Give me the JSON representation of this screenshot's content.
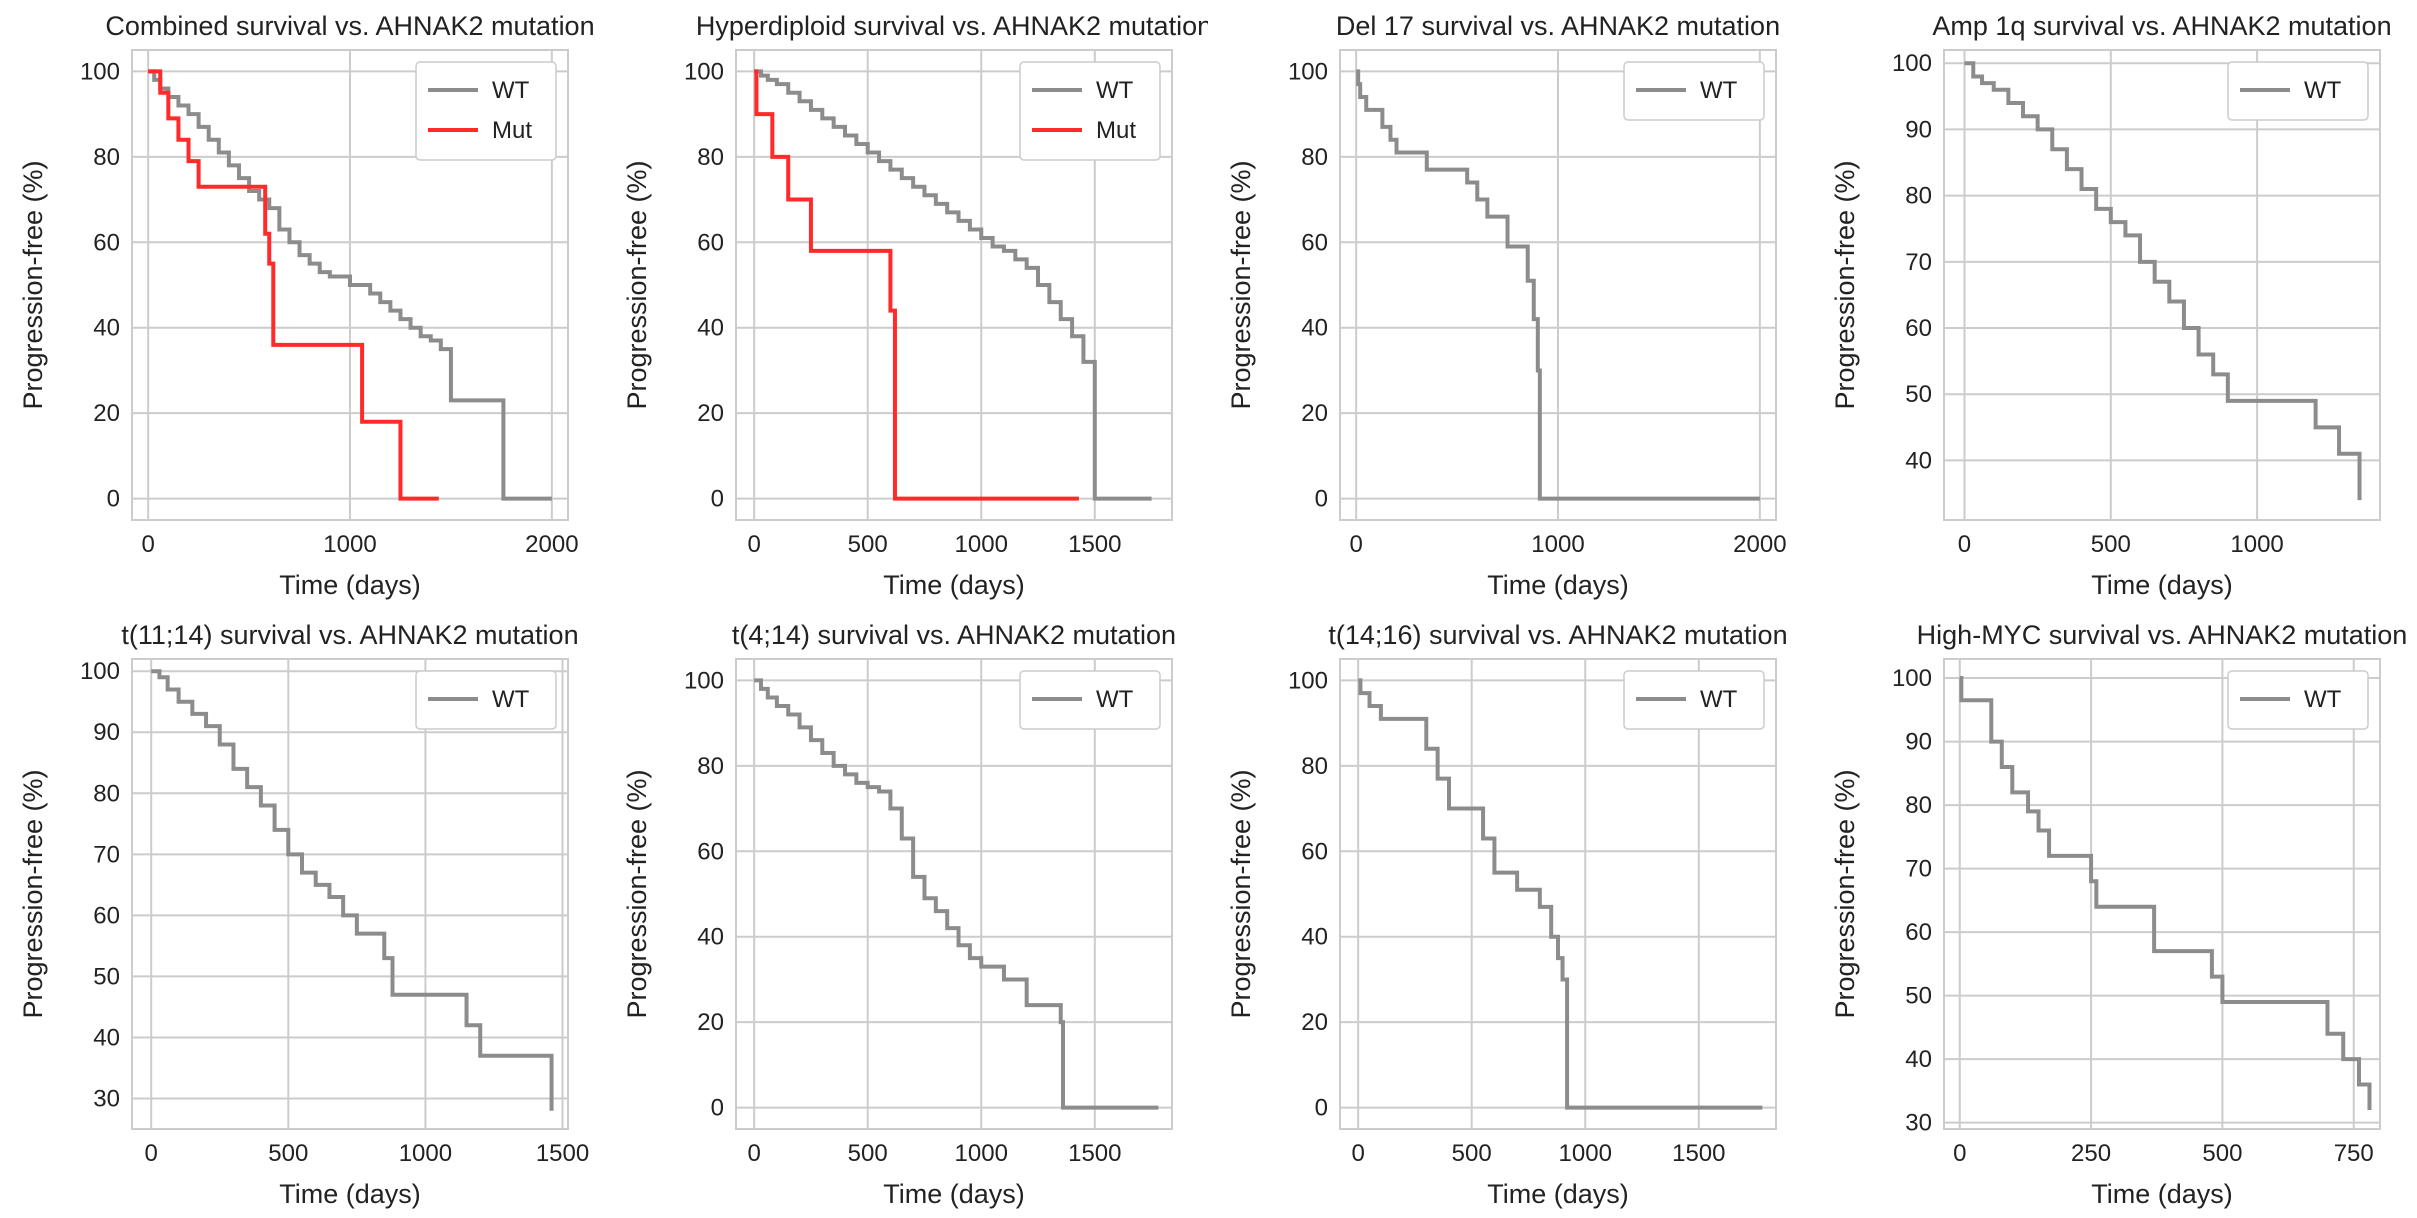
{
  "colors": {
    "WT": "#8c8c8c",
    "Mut": "#ff2a2a",
    "grid": "#cccccc"
  },
  "chart_data": [
    {
      "type": "line",
      "title": "Combined survival vs. AHNAK2 mutation",
      "xlabel": "Time (days)",
      "ylabel": "Progression-free (%)",
      "xlim": [
        -80,
        2080
      ],
      "ylim": [
        -5,
        105
      ],
      "xticks": [
        0,
        1000,
        2000
      ],
      "yticks": [
        0,
        20,
        40,
        60,
        80,
        100
      ],
      "legend": "top-right",
      "grid": true,
      "series": [
        {
          "name": "WT",
          "x": [
            0,
            30,
            60,
            100,
            150,
            200,
            250,
            300,
            350,
            400,
            450,
            500,
            550,
            600,
            650,
            700,
            750,
            800,
            850,
            900,
            1000,
            1100,
            1150,
            1200,
            1250,
            1300,
            1350,
            1400,
            1450,
            1500,
            1750,
            1760,
            2000
          ],
          "y": [
            100,
            98,
            96,
            94,
            92,
            90,
            87,
            84,
            81,
            78,
            75,
            72,
            70,
            68,
            63,
            60,
            57,
            55,
            53,
            52,
            50,
            48,
            46,
            44,
            42,
            40,
            38,
            37,
            35,
            23,
            23,
            0,
            0
          ]
        },
        {
          "name": "Mut",
          "x": [
            0,
            60,
            100,
            150,
            200,
            250,
            560,
            580,
            600,
            620,
            1050,
            1060,
            1240,
            1250,
            1440
          ],
          "y": [
            100,
            95,
            89,
            84,
            79,
            73,
            73,
            62,
            55,
            36,
            36,
            18,
            18,
            0,
            0
          ]
        }
      ]
    },
    {
      "type": "line",
      "title": "Hyperdiploid survival vs. AHNAK2 mutation",
      "xlabel": "Time (days)",
      "ylabel": "Progression-free (%)",
      "xlim": [
        -80,
        1840
      ],
      "ylim": [
        -5,
        105
      ],
      "xticks": [
        0,
        500,
        1000,
        1500
      ],
      "yticks": [
        0,
        20,
        40,
        60,
        80,
        100
      ],
      "legend": "top-right",
      "grid": true,
      "series": [
        {
          "name": "WT",
          "x": [
            0,
            30,
            60,
            100,
            150,
            200,
            250,
            300,
            350,
            400,
            450,
            500,
            550,
            600,
            650,
            700,
            750,
            800,
            850,
            900,
            950,
            1000,
            1050,
            1100,
            1150,
            1200,
            1250,
            1300,
            1350,
            1400,
            1450,
            1490,
            1500,
            1750
          ],
          "y": [
            100,
            99,
            98,
            97,
            95,
            93,
            91,
            89,
            87,
            85,
            83,
            81,
            79,
            77,
            75,
            73,
            71,
            69,
            67,
            65,
            63,
            61,
            59,
            58,
            56,
            54,
            50,
            46,
            42,
            38,
            32,
            32,
            0,
            0
          ]
        },
        {
          "name": "Mut",
          "x": [
            0,
            10,
            80,
            150,
            250,
            580,
            600,
            620,
            1430
          ],
          "y": [
            100,
            90,
            80,
            70,
            58,
            58,
            44,
            0,
            0
          ]
        }
      ]
    },
    {
      "type": "line",
      "title": "Del 17 survival vs. AHNAK2 mutation",
      "xlabel": "Time (days)",
      "ylabel": "Progression-free (%)",
      "xlim": [
        -80,
        2080
      ],
      "ylim": [
        -5,
        105
      ],
      "xticks": [
        0,
        1000,
        2000
      ],
      "yticks": [
        0,
        20,
        40,
        60,
        80,
        100
      ],
      "legend": "top-right",
      "grid": true,
      "series": [
        {
          "name": "WT",
          "x": [
            0,
            10,
            20,
            50,
            130,
            170,
            200,
            350,
            550,
            600,
            650,
            750,
            850,
            880,
            900,
            910,
            2000
          ],
          "y": [
            100,
            97,
            94,
            91,
            87,
            84,
            81,
            77,
            74,
            70,
            66,
            59,
            51,
            42,
            30,
            0,
            0
          ]
        }
      ]
    },
    {
      "type": "line",
      "title": "Amp 1q survival vs. AHNAK2 mutation",
      "xlabel": "Time (days)",
      "ylabel": "Progression-free (%)",
      "xlim": [
        -70,
        1420
      ],
      "ylim": [
        31,
        102
      ],
      "xticks": [
        0,
        500,
        1000
      ],
      "yticks": [
        40,
        50,
        60,
        70,
        80,
        90,
        100
      ],
      "legend": "top-right",
      "grid": true,
      "series": [
        {
          "name": "WT",
          "x": [
            0,
            30,
            60,
            100,
            150,
            200,
            250,
            300,
            350,
            400,
            450,
            500,
            550,
            600,
            650,
            700,
            750,
            800,
            850,
            900,
            1200,
            1280,
            1350
          ],
          "y": [
            100,
            98,
            97,
            96,
            94,
            92,
            90,
            87,
            84,
            81,
            78,
            76,
            74,
            70,
            67,
            64,
            60,
            56,
            53,
            49,
            45,
            41,
            34
          ]
        }
      ]
    },
    {
      "type": "line",
      "title": "t(11;14) survival vs. AHNAK2 mutation",
      "xlabel": "Time (days)",
      "ylabel": "Progression-free (%)",
      "xlim": [
        -70,
        1520
      ],
      "ylim": [
        25,
        102
      ],
      "xticks": [
        0,
        500,
        1000,
        1500
      ],
      "yticks": [
        30,
        40,
        50,
        60,
        70,
        80,
        90,
        100
      ],
      "legend": "top-right",
      "grid": true,
      "series": [
        {
          "name": "WT",
          "x": [
            0,
            30,
            60,
            100,
            150,
            200,
            250,
            300,
            350,
            400,
            450,
            500,
            550,
            600,
            650,
            700,
            750,
            850,
            880,
            1100,
            1150,
            1200,
            1460
          ],
          "y": [
            100,
            99,
            97,
            95,
            93,
            91,
            88,
            84,
            81,
            78,
            74,
            70,
            67,
            65,
            63,
            60,
            57,
            53,
            47,
            47,
            42,
            37,
            28
          ]
        }
      ]
    },
    {
      "type": "line",
      "title": "t(4;14) survival vs. AHNAK2 mutation",
      "xlabel": "Time (days)",
      "ylabel": "Progression-free (%)",
      "xlim": [
        -80,
        1840
      ],
      "ylim": [
        -5,
        105
      ],
      "xticks": [
        0,
        500,
        1000,
        1500
      ],
      "yticks": [
        0,
        20,
        40,
        60,
        80,
        100
      ],
      "legend": "top-right",
      "grid": true,
      "series": [
        {
          "name": "WT",
          "x": [
            0,
            30,
            60,
            100,
            150,
            200,
            250,
            300,
            350,
            400,
            450,
            500,
            550,
            600,
            650,
            700,
            750,
            800,
            850,
            900,
            950,
            1000,
            1100,
            1200,
            1350,
            1360,
            1780
          ],
          "y": [
            100,
            98,
            96,
            94,
            92,
            89,
            86,
            83,
            80,
            78,
            76,
            75,
            74,
            70,
            63,
            54,
            49,
            46,
            42,
            38,
            35,
            33,
            30,
            24,
            20,
            0,
            0
          ]
        }
      ]
    },
    {
      "type": "line",
      "title": "t(14;16) survival vs. AHNAK2 mutation",
      "xlabel": "Time (days)",
      "ylabel": "Progression-free (%)",
      "xlim": [
        -80,
        1840
      ],
      "ylim": [
        -5,
        105
      ],
      "xticks": [
        0,
        500,
        1000,
        1500
      ],
      "yticks": [
        0,
        20,
        40,
        60,
        80,
        100
      ],
      "legend": "top-right",
      "grid": true,
      "series": [
        {
          "name": "WT",
          "x": [
            0,
            10,
            50,
            100,
            300,
            350,
            400,
            500,
            550,
            600,
            700,
            800,
            850,
            880,
            900,
            920,
            1780
          ],
          "y": [
            100,
            97,
            94,
            91,
            84,
            77,
            70,
            70,
            63,
            55,
            51,
            47,
            40,
            35,
            30,
            0,
            0
          ]
        }
      ]
    },
    {
      "type": "line",
      "title": "High-MYC survival vs. AHNAK2 mutation",
      "xlabel": "Time (days)",
      "ylabel": "Progression-free (%)",
      "xlim": [
        -30,
        800
      ],
      "ylim": [
        29,
        103
      ],
      "xticks": [
        0,
        250,
        500,
        750
      ],
      "yticks": [
        30,
        40,
        50,
        60,
        70,
        80,
        90,
        100
      ],
      "legend": "top-right",
      "grid": true,
      "series": [
        {
          "name": "WT",
          "x": [
            0,
            3,
            60,
            80,
            100,
            130,
            150,
            170,
            250,
            260,
            370,
            480,
            500,
            700,
            730,
            760,
            780
          ],
          "y": [
            100,
            96.5,
            90,
            86,
            82,
            79,
            76,
            72,
            68,
            64,
            57,
            53,
            49,
            44,
            40,
            36,
            32
          ]
        }
      ]
    }
  ]
}
